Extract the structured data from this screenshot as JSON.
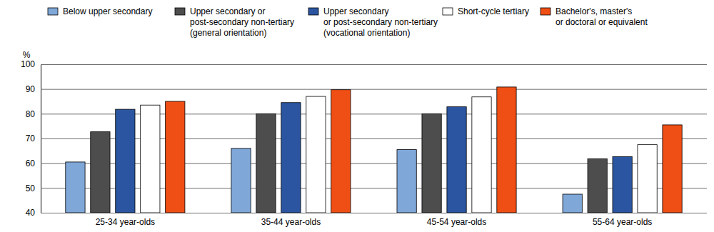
{
  "chart_data": {
    "type": "bar",
    "y_label": "%",
    "categories": [
      "25-34 year-olds",
      "35-44 year-olds",
      "45-54 year-olds",
      "55-64 year-olds"
    ],
    "series": [
      {
        "name": "Below upper secondary",
        "color": "#7fa7d8",
        "values": [
          60.5,
          66,
          65.5,
          47.5
        ]
      },
      {
        "name": "Upper secondary or\npost-secondary non-tertiary\n(general orientation)",
        "color": "#4d4d4d",
        "values": [
          72.7,
          80,
          80,
          61.8
        ]
      },
      {
        "name": "Upper secondary\nor post-secondary non-tertiary\n(vocational orientation)",
        "color": "#2b55a0",
        "values": [
          81.8,
          84.5,
          82.8,
          62.7
        ]
      },
      {
        "name": "Short-cycle tertiary",
        "color": "#ffffff",
        "values": [
          83.5,
          87,
          86.8,
          67.5
        ]
      },
      {
        "name": "Bachelor's, master's\nor doctoral or equivalent",
        "color": "#ef4e14",
        "values": [
          85,
          89.7,
          90.8,
          75.5
        ]
      }
    ],
    "ylim": [
      40,
      100
    ],
    "yticks": [
      40,
      50,
      60,
      70,
      80,
      90,
      100
    ],
    "grid": true,
    "legend": "top"
  }
}
